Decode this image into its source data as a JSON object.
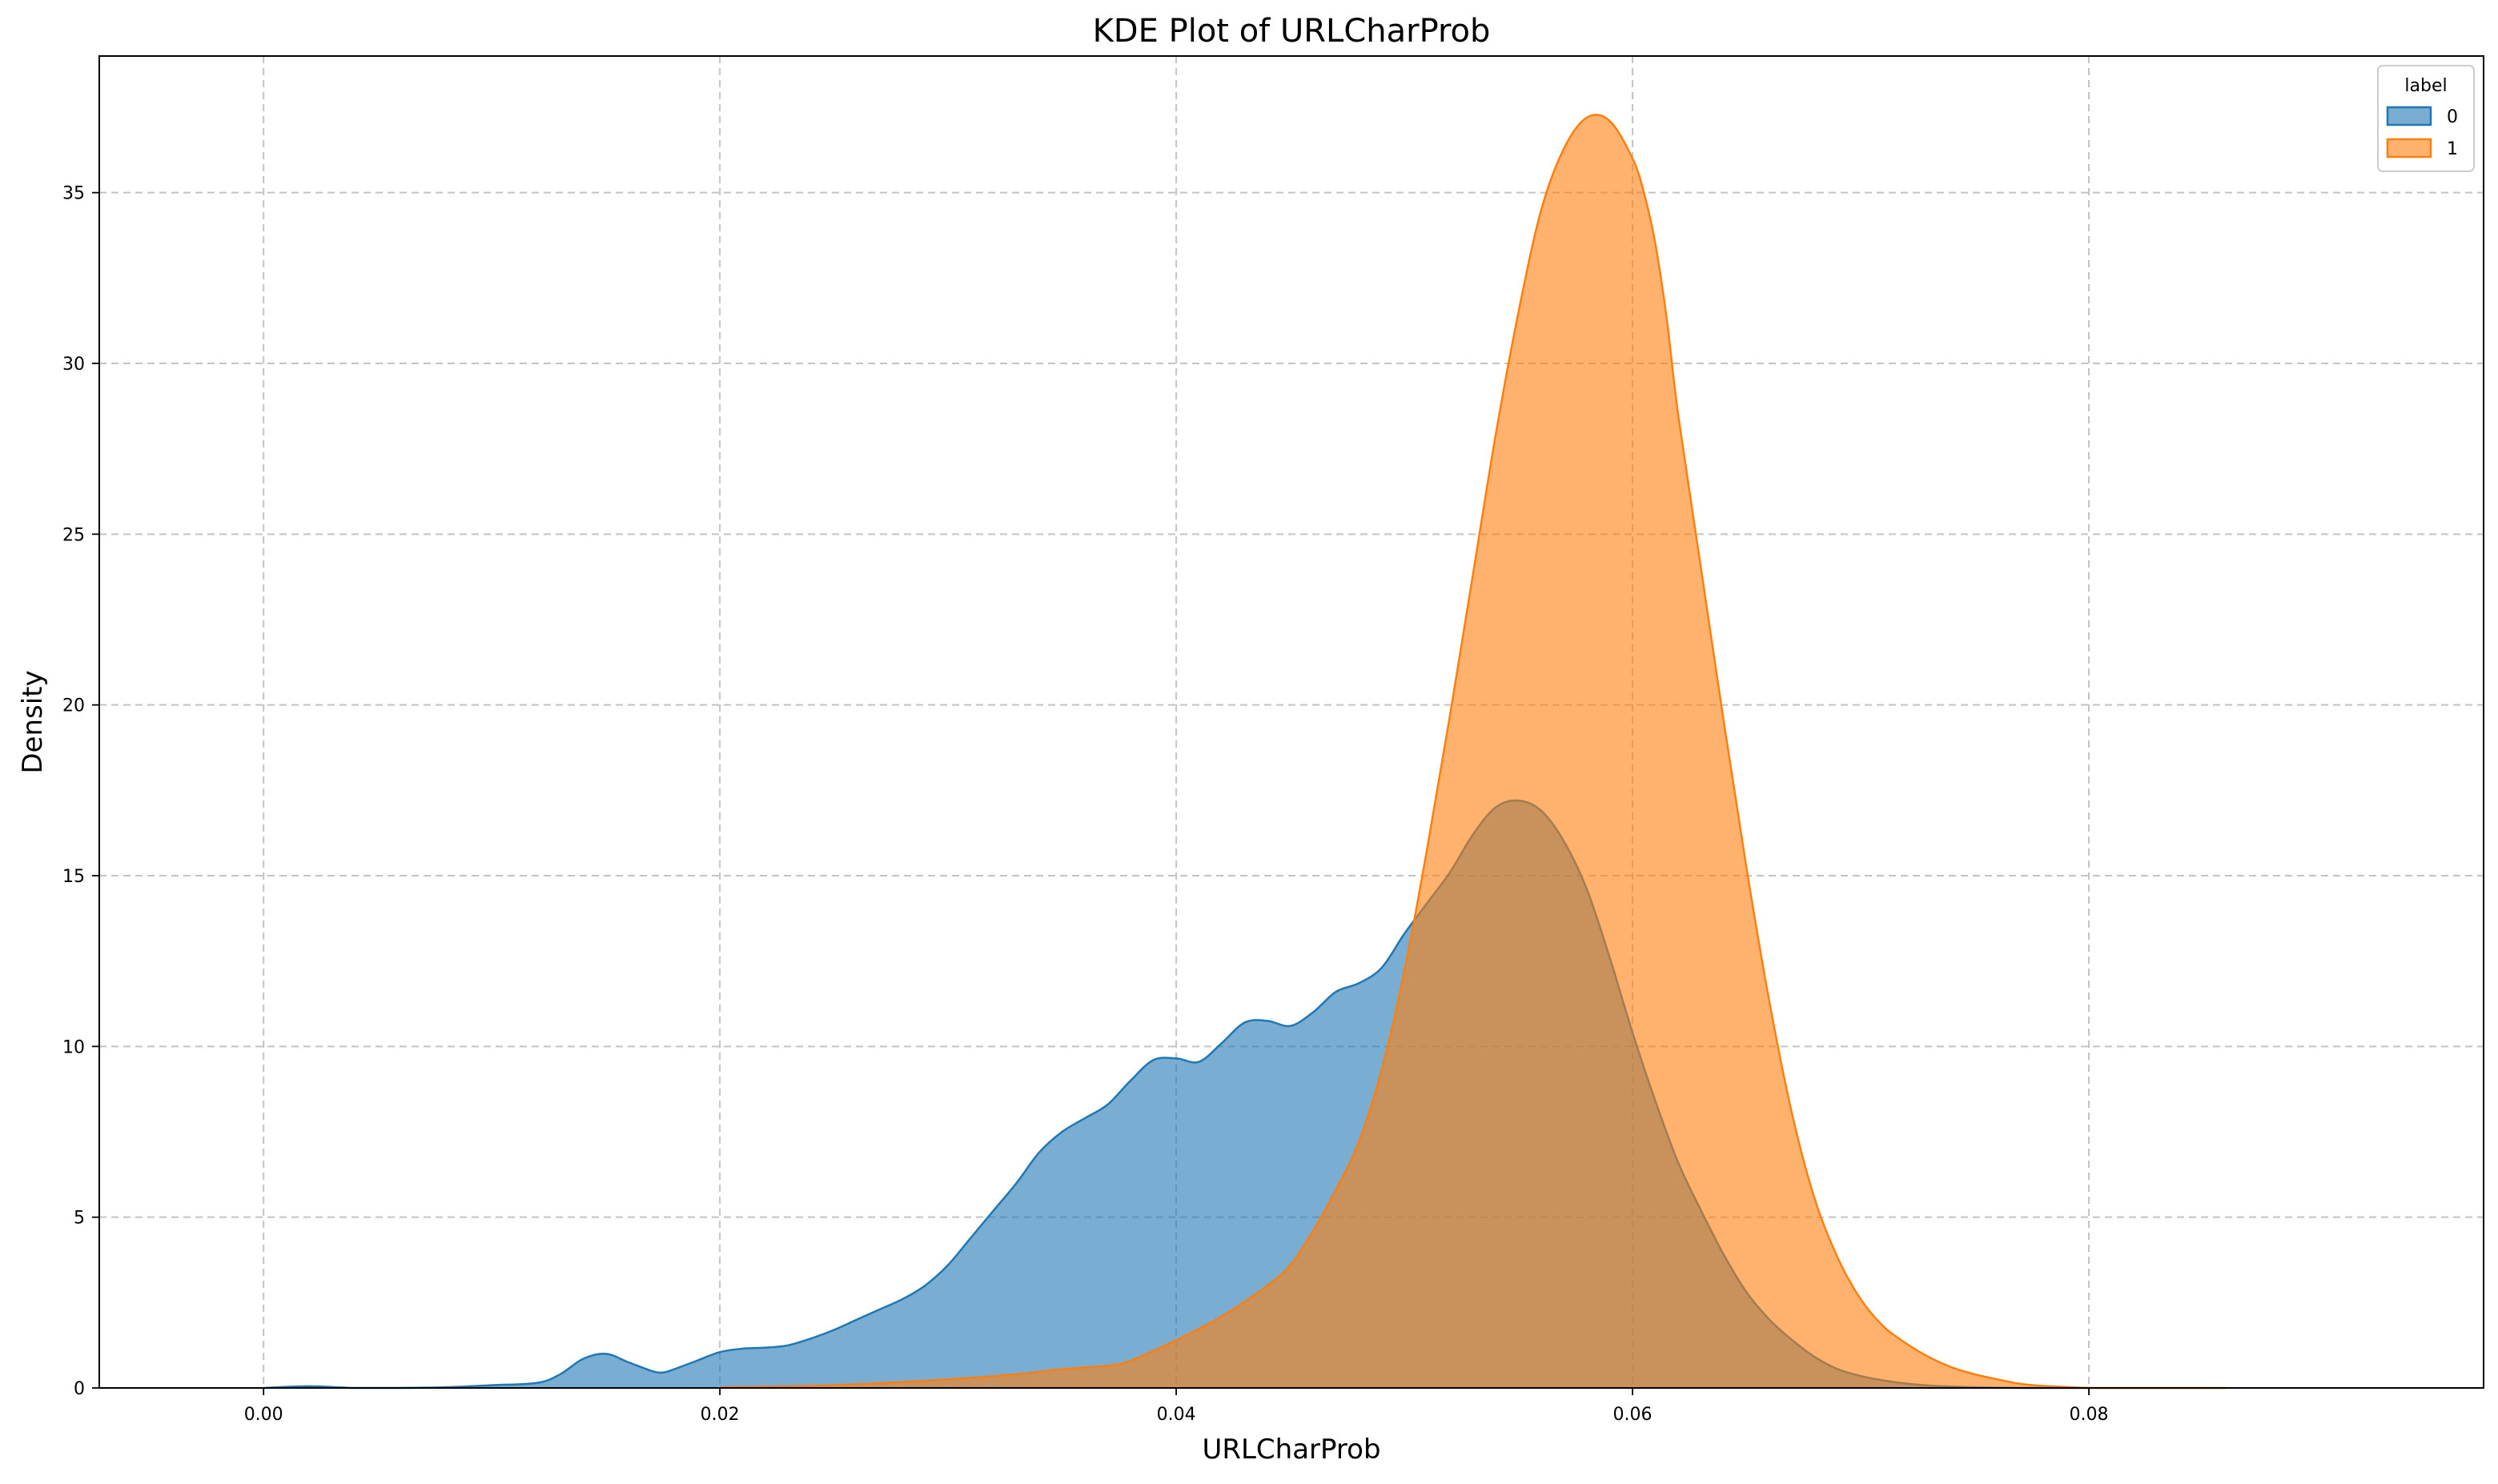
{
  "chart_data": {
    "type": "area",
    "title": "KDE Plot of URLCharProb",
    "xlabel": "URLCharProb",
    "ylabel": "Density",
    "xlim": [
      -0.0072,
      0.0973
    ],
    "ylim": [
      0,
      39.0
    ],
    "xticks": [
      0.0,
      0.02,
      0.04,
      0.06,
      0.08
    ],
    "xtick_labels": [
      "0.00",
      "0.02",
      "0.04",
      "0.06",
      "0.08"
    ],
    "yticks": [
      0,
      5,
      10,
      15,
      20,
      25,
      30,
      35
    ],
    "ytick_labels": [
      "0",
      "5",
      "10",
      "15",
      "20",
      "25",
      "30",
      "35"
    ],
    "grid": true,
    "legend": {
      "title": "label",
      "position": "top-right"
    },
    "series": [
      {
        "name": "0",
        "color": "#1f77b4",
        "fill_opacity": 0.6,
        "x": [
          0.0,
          0.002,
          0.004,
          0.006,
          0.008,
          0.01,
          0.012,
          0.013,
          0.014,
          0.015,
          0.016,
          0.017,
          0.0175,
          0.018,
          0.019,
          0.02,
          0.021,
          0.022,
          0.023,
          0.024,
          0.025,
          0.026,
          0.027,
          0.028,
          0.029,
          0.03,
          0.031,
          0.032,
          0.033,
          0.034,
          0.035,
          0.036,
          0.037,
          0.038,
          0.039,
          0.04,
          0.041,
          0.042,
          0.043,
          0.044,
          0.045,
          0.046,
          0.047,
          0.048,
          0.049,
          0.05,
          0.051,
          0.052,
          0.053,
          0.054,
          0.055,
          0.056,
          0.057,
          0.058,
          0.059,
          0.06,
          0.061,
          0.062,
          0.063,
          0.064,
          0.065,
          0.066,
          0.067,
          0.068,
          0.069,
          0.07,
          0.071,
          0.072,
          0.073,
          0.074,
          0.075,
          0.076,
          0.077,
          0.078,
          0.079,
          0.08
        ],
        "y": [
          0.0,
          0.05,
          0.0,
          0.0,
          0.02,
          0.08,
          0.15,
          0.4,
          0.85,
          1.0,
          0.75,
          0.5,
          0.45,
          0.55,
          0.8,
          1.05,
          1.15,
          1.18,
          1.25,
          1.45,
          1.7,
          2.0,
          2.3,
          2.6,
          3.0,
          3.6,
          4.4,
          5.2,
          6.0,
          6.9,
          7.5,
          7.9,
          8.3,
          9.0,
          9.6,
          9.65,
          9.55,
          10.1,
          10.7,
          10.75,
          10.6,
          11.0,
          11.6,
          11.85,
          12.3,
          13.3,
          14.2,
          15.1,
          16.2,
          17.0,
          17.2,
          16.9,
          16.0,
          14.6,
          12.6,
          10.4,
          8.4,
          6.6,
          5.2,
          3.9,
          2.8,
          2.0,
          1.4,
          0.9,
          0.55,
          0.35,
          0.22,
          0.13,
          0.07,
          0.04,
          0.02,
          0.01,
          0.0,
          0.0,
          0.0,
          0.0
        ]
      },
      {
        "name": "1",
        "color": "#ff7f0e",
        "fill_opacity": 0.6,
        "x": [
          0.02,
          0.025,
          0.03,
          0.033,
          0.035,
          0.037,
          0.038,
          0.04,
          0.042,
          0.044,
          0.045,
          0.046,
          0.047,
          0.048,
          0.049,
          0.05,
          0.051,
          0.052,
          0.053,
          0.054,
          0.055,
          0.056,
          0.057,
          0.058,
          0.059,
          0.06,
          0.0605,
          0.061,
          0.0615,
          0.062,
          0.063,
          0.064,
          0.065,
          0.066,
          0.067,
          0.068,
          0.069,
          0.07,
          0.071,
          0.072,
          0.073,
          0.074,
          0.075,
          0.076,
          0.077,
          0.078,
          0.079,
          0.08,
          0.082,
          0.084,
          0.086
        ],
        "y": [
          0.02,
          0.08,
          0.25,
          0.4,
          0.55,
          0.65,
          0.8,
          1.4,
          2.1,
          3.0,
          3.6,
          4.6,
          5.8,
          7.2,
          9.3,
          12.2,
          15.8,
          19.7,
          23.8,
          27.9,
          31.5,
          34.5,
          36.3,
          37.2,
          37.1,
          36.0,
          35.0,
          33.5,
          31.3,
          28.5,
          24.0,
          19.5,
          15.2,
          11.3,
          8.0,
          5.5,
          3.8,
          2.6,
          1.8,
          1.3,
          0.9,
          0.6,
          0.4,
          0.25,
          0.12,
          0.06,
          0.03,
          0.0,
          0.0,
          0.0,
          0.0
        ]
      }
    ]
  }
}
